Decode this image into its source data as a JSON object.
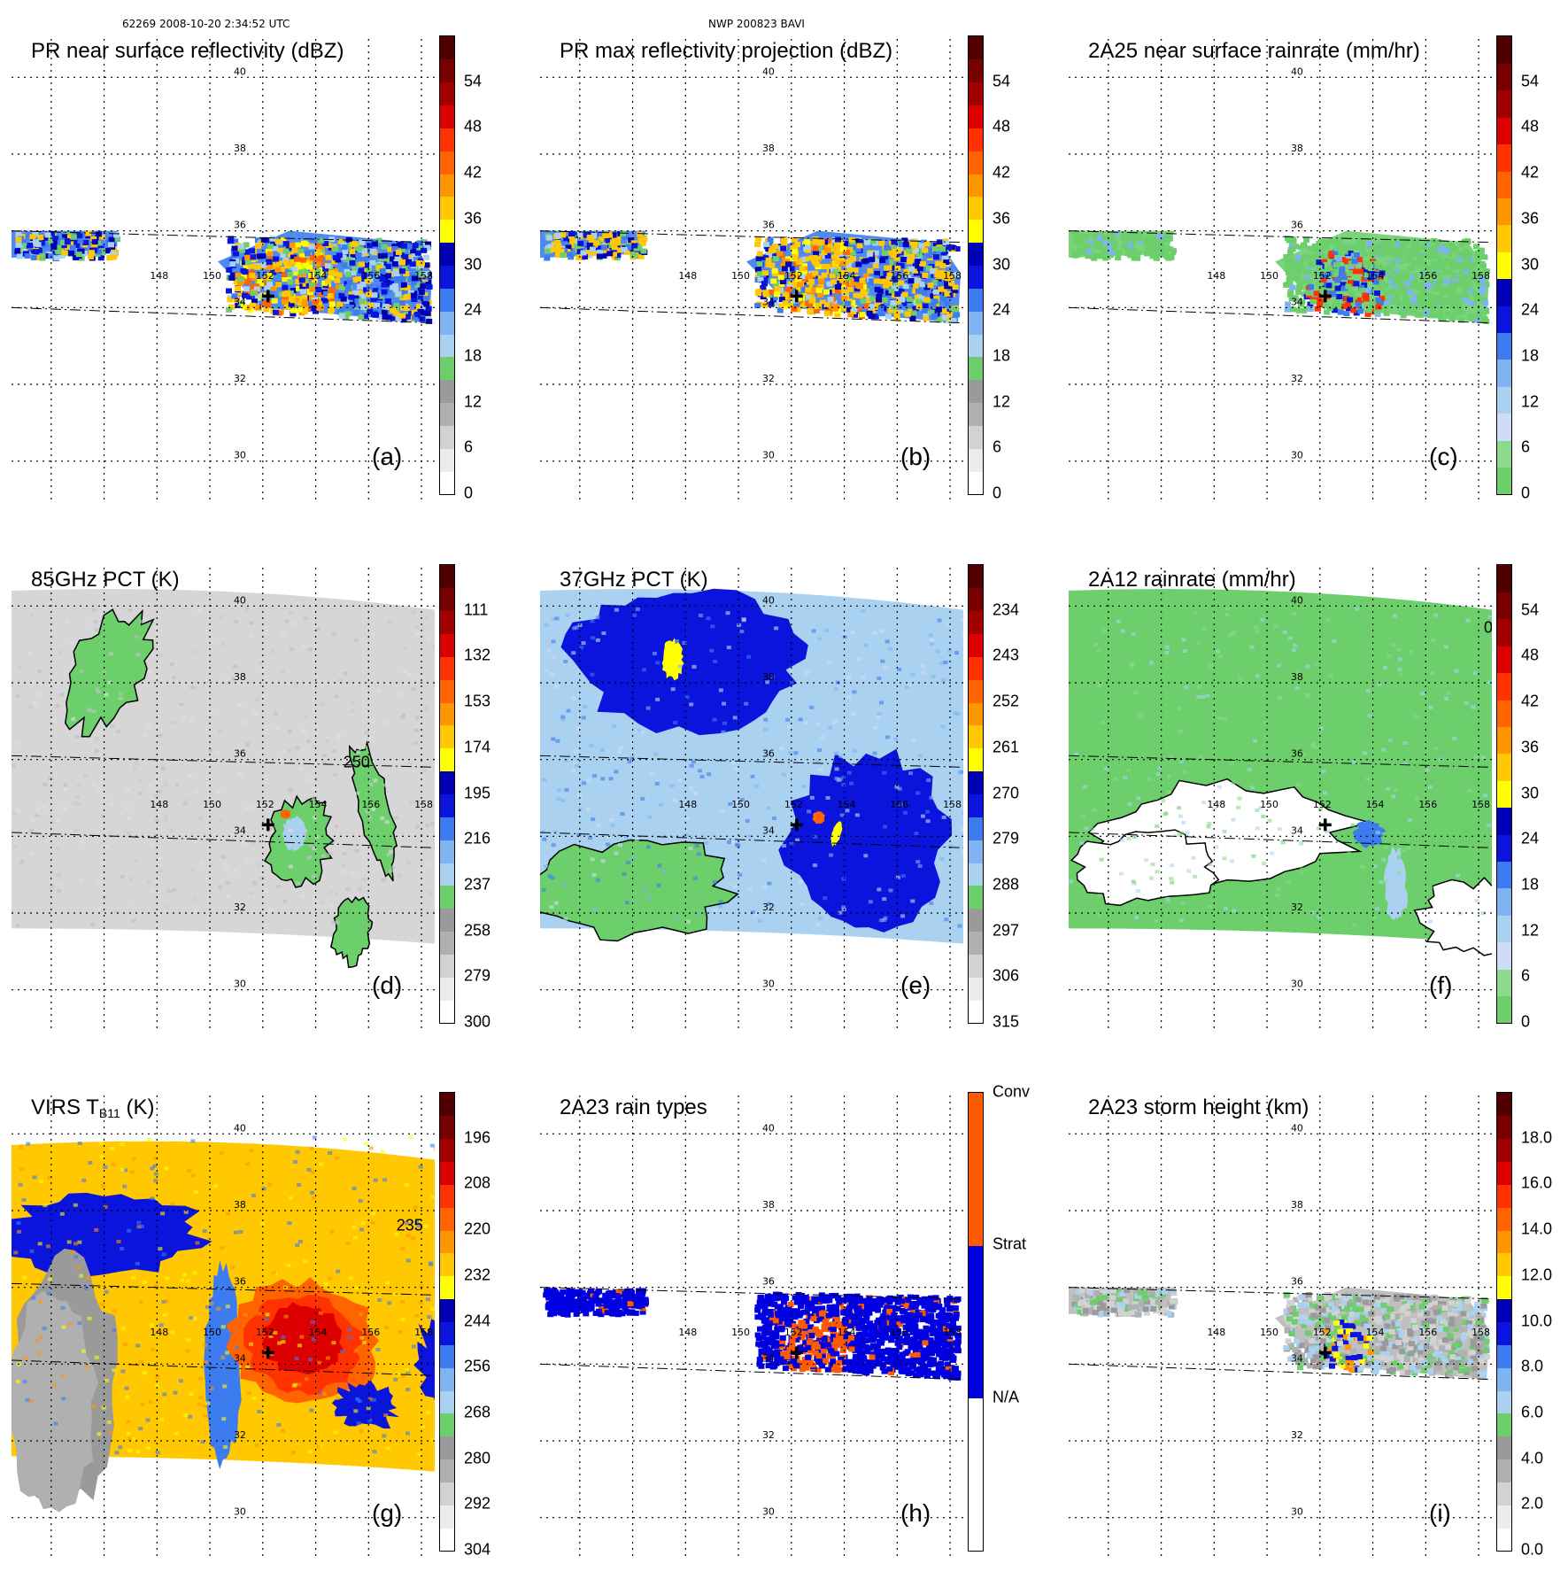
{
  "header": {
    "left": "62269 2008-10-20 2:34:52 UTC",
    "center": "NWP 200823 BAVI"
  },
  "map": {
    "lat_labels": [
      "40",
      "38",
      "36",
      "34",
      "32",
      "30"
    ],
    "lon_labels": [
      "148",
      "150",
      "152",
      "154",
      "156",
      "158"
    ],
    "lat_range": [
      29,
      41
    ],
    "lon_range": [
      142.5,
      158.5
    ],
    "storm_center": {
      "lon": 152.2,
      "lat": 34.3
    }
  },
  "panels": [
    {
      "id": "a",
      "title": "PR near surface reflectivity (dBZ)",
      "letter": "(a)",
      "colorbar": {
        "ticks": [
          "0",
          "6",
          "12",
          "18",
          "24",
          "30",
          "36",
          "42",
          "48",
          "54"
        ],
        "colors": [
          "#ffffff",
          "#ececec",
          "#d2d2d2",
          "#b0b0b0",
          "#9a9a9a",
          "#6ccf6c",
          "#aad2f0",
          "#7fb4f0",
          "#3c7cf0",
          "#0a14dc",
          "#0000b4",
          "#ffff00",
          "#ffc800",
          "#ff9600",
          "#ff6400",
          "#ff3200",
          "#dc0000",
          "#a00000",
          "#780000",
          "#500000"
        ]
      },
      "data_label": "near-surface PR reflectivity swath"
    },
    {
      "id": "b",
      "title": "PR max reflectivity projection (dBZ)",
      "letter": "(b)",
      "colorbar": {
        "ticks": [
          "0",
          "6",
          "12",
          "18",
          "24",
          "30",
          "36",
          "42",
          "48",
          "54"
        ],
        "colors": [
          "#ffffff",
          "#ececec",
          "#d2d2d2",
          "#b0b0b0",
          "#9a9a9a",
          "#6ccf6c",
          "#aad2f0",
          "#7fb4f0",
          "#3c7cf0",
          "#0a14dc",
          "#0000b4",
          "#ffff00",
          "#ffc800",
          "#ff9600",
          "#ff6400",
          "#ff3200",
          "#dc0000",
          "#a00000",
          "#780000",
          "#500000"
        ]
      }
    },
    {
      "id": "c",
      "title": "2A25 near surface rainrate (mm/hr)",
      "letter": "(c)",
      "colorbar": {
        "ticks": [
          "0",
          "6",
          "12",
          "18",
          "24",
          "30",
          "36",
          "42",
          "48",
          "54"
        ],
        "colors": [
          "#6ccf6c",
          "#8cd88c",
          "#cfdcf5",
          "#aad2f0",
          "#7fb4f0",
          "#3c7cf0",
          "#0a14dc",
          "#0000b4",
          "#ffff00",
          "#ffc800",
          "#ff9600",
          "#ff6400",
          "#ff3200",
          "#dc0000",
          "#a00000",
          "#780000",
          "#500000"
        ]
      }
    },
    {
      "id": "d",
      "title": "85GHz PCT (K)",
      "letter": "(d)",
      "contour_label": "250",
      "colorbar": {
        "ticks": [
          "300",
          "279",
          "258",
          "237",
          "216",
          "195",
          "174",
          "153",
          "132",
          "111"
        ],
        "colors": [
          "#ffffff",
          "#ececec",
          "#d2d2d2",
          "#b0b0b0",
          "#9a9a9a",
          "#6ccf6c",
          "#aad2f0",
          "#7fb4f0",
          "#3c7cf0",
          "#0a14dc",
          "#0000b4",
          "#ffff00",
          "#ffc800",
          "#ff9600",
          "#ff6400",
          "#ff3200",
          "#dc0000",
          "#a00000",
          "#780000",
          "#500000"
        ]
      }
    },
    {
      "id": "e",
      "title": "37GHz PCT (K)",
      "letter": "(e)",
      "colorbar": {
        "ticks": [
          "315",
          "306",
          "297",
          "288",
          "279",
          "270",
          "261",
          "252",
          "243",
          "234"
        ],
        "colors": [
          "#ffffff",
          "#ececec",
          "#d2d2d2",
          "#b0b0b0",
          "#9a9a9a",
          "#6ccf6c",
          "#aad2f0",
          "#7fb4f0",
          "#3c7cf0",
          "#0a14dc",
          "#0000b4",
          "#ffff00",
          "#ffc800",
          "#ff9600",
          "#ff6400",
          "#ff3200",
          "#dc0000",
          "#a00000",
          "#780000",
          "#500000"
        ]
      }
    },
    {
      "id": "f",
      "title": "2A12 rainrate (mm/hr)",
      "letter": "(f)",
      "contour_label": "0",
      "colorbar": {
        "ticks": [
          "0",
          "6",
          "12",
          "18",
          "24",
          "30",
          "36",
          "42",
          "48",
          "54"
        ],
        "colors": [
          "#6ccf6c",
          "#8cd88c",
          "#cfdcf5",
          "#aad2f0",
          "#7fb4f0",
          "#3c7cf0",
          "#0a14dc",
          "#0000b4",
          "#ffff00",
          "#ffc800",
          "#ff9600",
          "#ff6400",
          "#ff3200",
          "#dc0000",
          "#a00000",
          "#780000",
          "#500000"
        ]
      }
    },
    {
      "id": "g",
      "title_main": "VIRS T",
      "title_sub": "B11",
      "title_end": " (K)",
      "letter": "(g)",
      "contour_label": "235",
      "colorbar": {
        "ticks": [
          "304",
          "292",
          "280",
          "268",
          "256",
          "244",
          "232",
          "220",
          "208",
          "196"
        ],
        "colors": [
          "#ffffff",
          "#ececec",
          "#d2d2d2",
          "#b0b0b0",
          "#9a9a9a",
          "#6ccf6c",
          "#aad2f0",
          "#7fb4f0",
          "#3c7cf0",
          "#0a14dc",
          "#0000b4",
          "#ffff00",
          "#ffc800",
          "#ff9600",
          "#ff6400",
          "#ff3200",
          "#dc0000",
          "#a00000",
          "#780000",
          "#500000"
        ]
      }
    },
    {
      "id": "h",
      "title": "2A23 rain types",
      "letter": "(h)",
      "colorbar": {
        "ticks": [
          "N/A",
          "Strat",
          "Conv"
        ],
        "colors": [
          "#ffffff",
          "#0000e0",
          "#ff5a00"
        ]
      }
    },
    {
      "id": "i",
      "title": "2A23 storm height (km)",
      "letter": "(i)",
      "colorbar": {
        "ticks": [
          "0.0",
          "2.0",
          "4.0",
          "6.0",
          "8.0",
          "10.0",
          "12.0",
          "14.0",
          "16.0",
          "18.0"
        ],
        "colors": [
          "#ffffff",
          "#ececec",
          "#d2d2d2",
          "#b0b0b0",
          "#9a9a9a",
          "#6ccf6c",
          "#aad2f0",
          "#7fb4f0",
          "#3c7cf0",
          "#0a14dc",
          "#0000b4",
          "#ffff00",
          "#ffc800",
          "#ff9600",
          "#ff6400",
          "#ff3200",
          "#dc0000",
          "#a00000",
          "#780000",
          "#500000"
        ]
      }
    }
  ]
}
